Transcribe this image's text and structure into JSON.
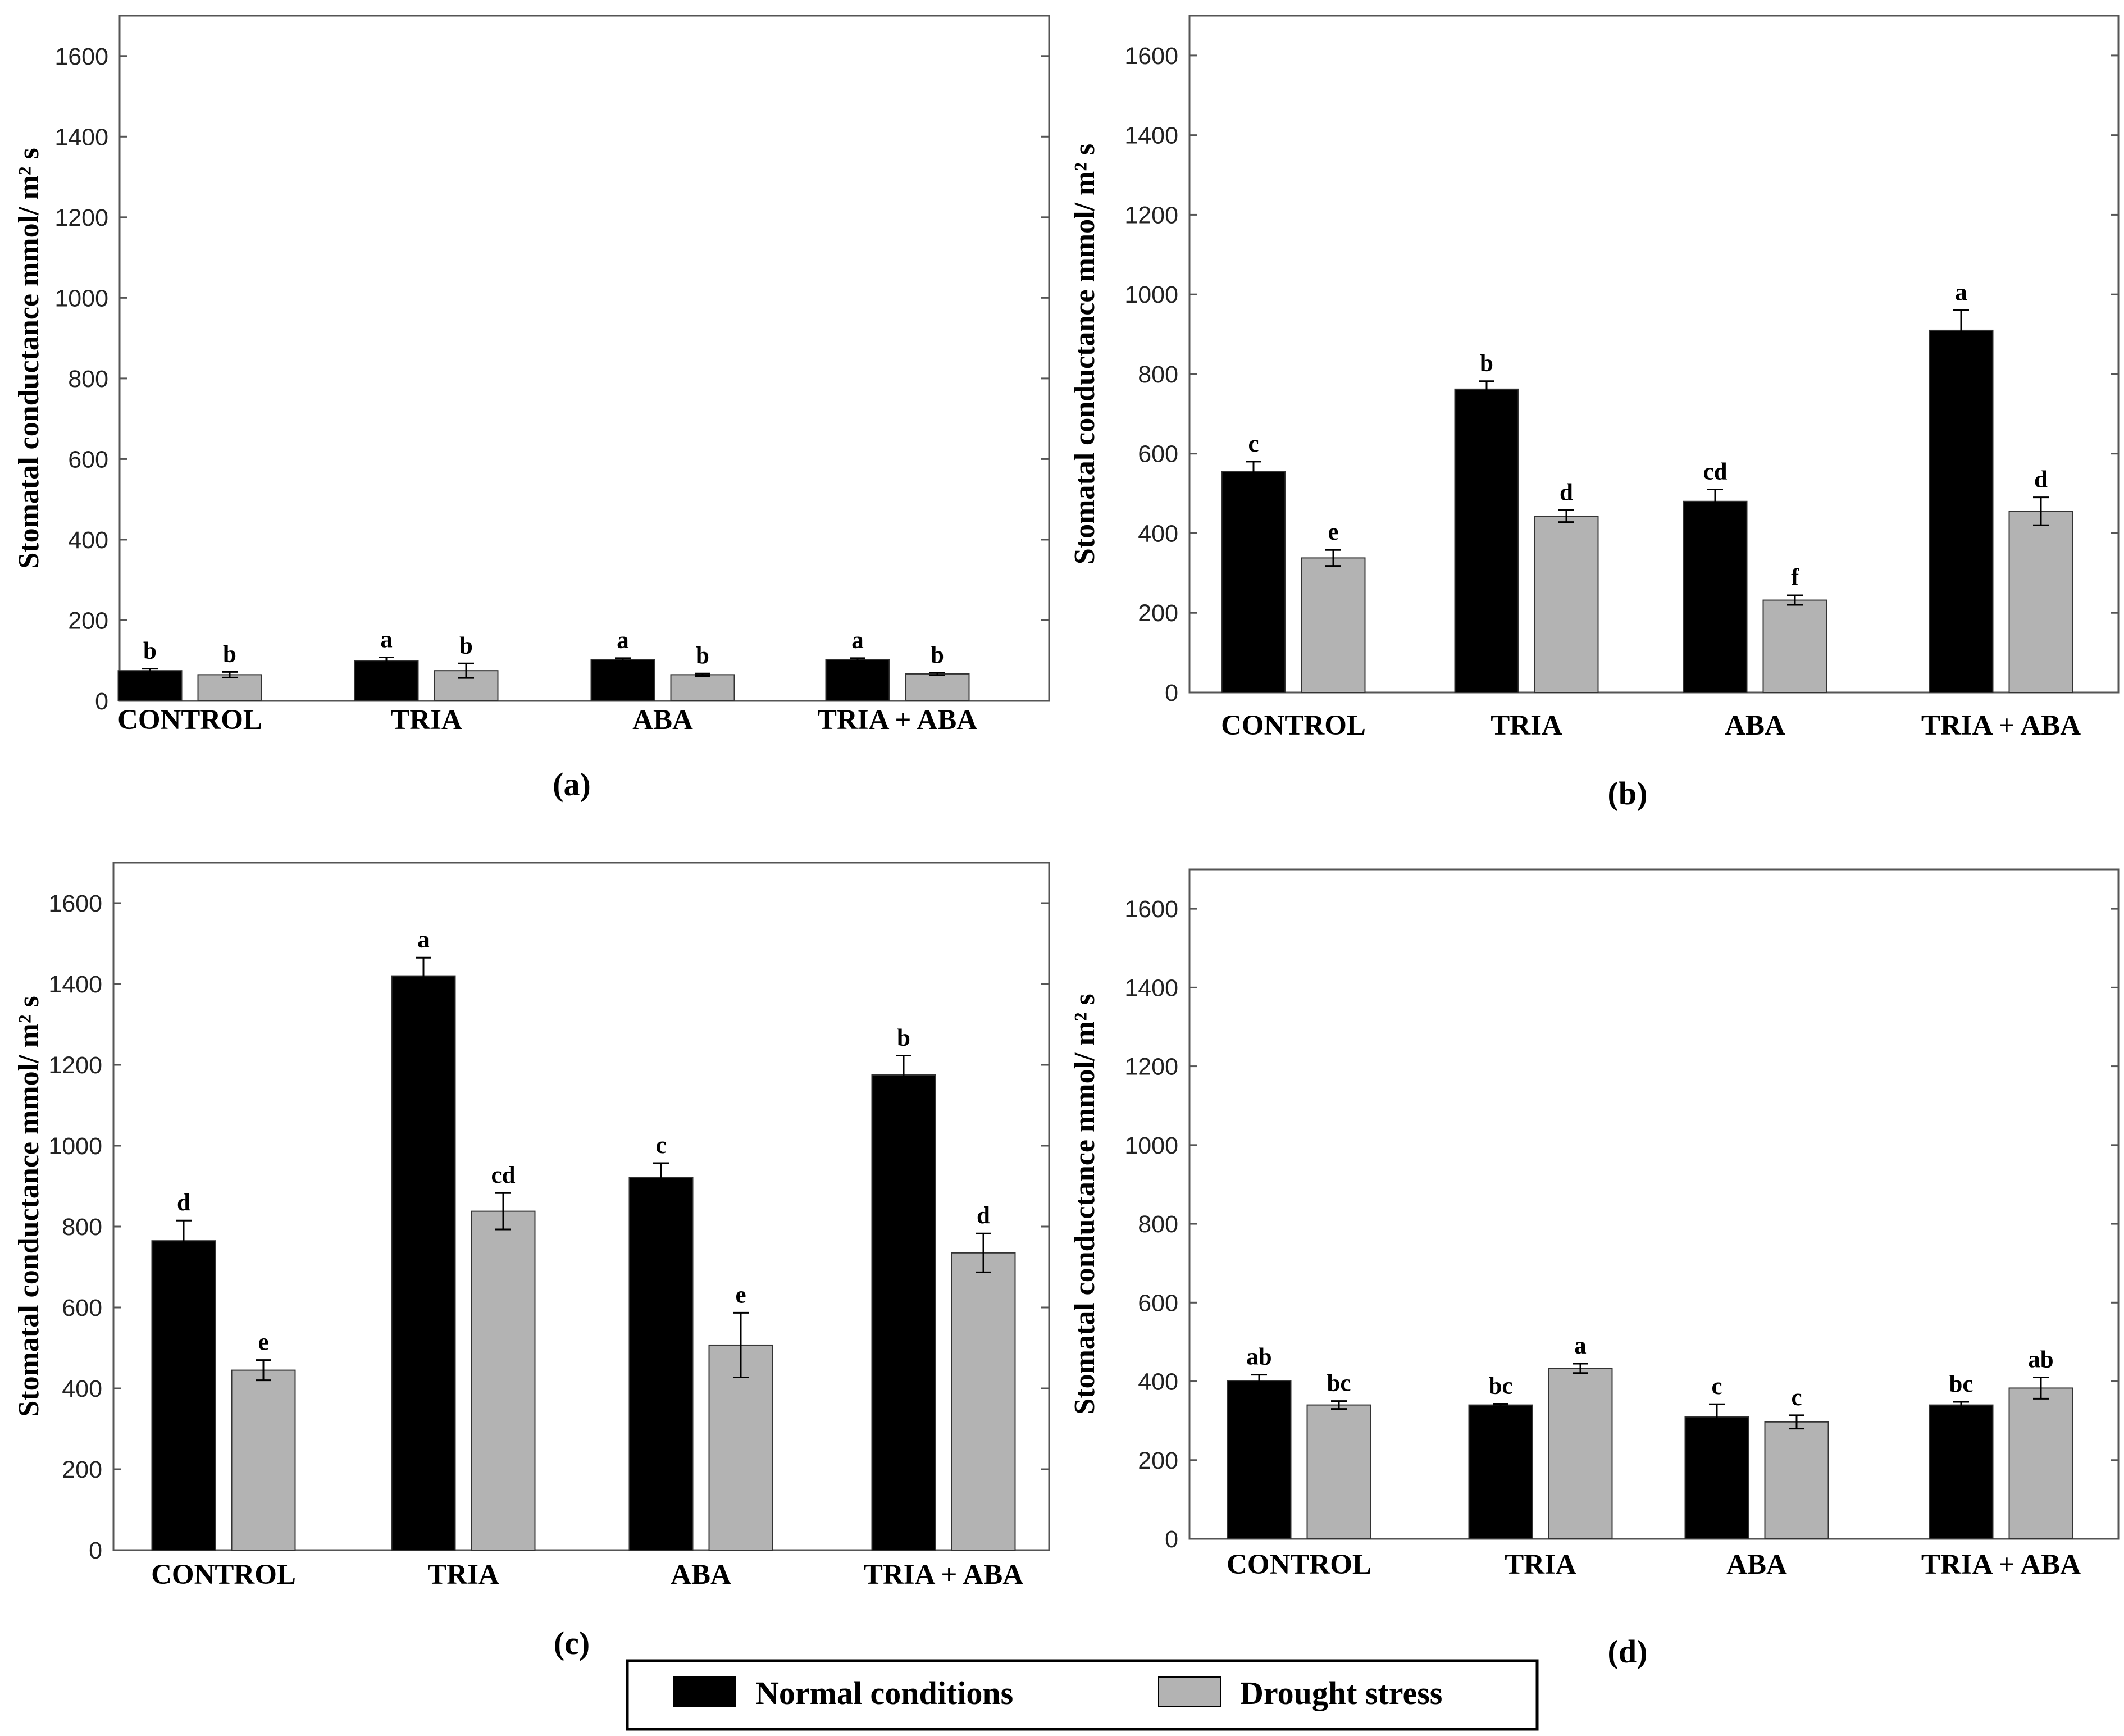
{
  "colors": {
    "normal": "#000000",
    "drought": "#b3b3b3",
    "axis": "#555555"
  },
  "legend": [
    {
      "name": "Normal conditions",
      "color": "#000000"
    },
    {
      "name": "Drought stress",
      "color": "#b3b3b3"
    }
  ],
  "chart_data": [
    {
      "type": "bar",
      "panel_label": "(a)",
      "categories": [
        "CONTROL",
        "TRIA",
        "ABA",
        "TRIA + ABA"
      ],
      "ylabel": "Stomatal conductance mmol/ m² s",
      "ylim": [
        0,
        1700
      ],
      "yticks": [
        0,
        200,
        400,
        600,
        800,
        1000,
        1200,
        1400,
        1600
      ],
      "series": [
        {
          "name": "Normal conditions",
          "values": [
            75,
            100,
            103,
            103
          ],
          "errors": [
            5,
            8,
            3,
            3
          ],
          "letters": [
            "b",
            "a",
            "a",
            "a"
          ]
        },
        {
          "name": "Drought stress",
          "values": [
            65,
            75,
            65,
            67
          ],
          "errors": [
            7,
            18,
            3,
            3
          ],
          "letters": [
            "b",
            "b",
            "b",
            "b"
          ]
        }
      ]
    },
    {
      "type": "bar",
      "panel_label": "(b)",
      "categories": [
        "CONTROL",
        "TRIA",
        "ABA",
        "TRIA + ABA"
      ],
      "ylabel": "Stomatal conductance mmol/ m² s",
      "ylim": [
        0,
        1700
      ],
      "yticks": [
        0,
        200,
        400,
        600,
        800,
        1000,
        1200,
        1400,
        1600
      ],
      "series": [
        {
          "name": "Normal conditions",
          "values": [
            555,
            762,
            480,
            910
          ],
          "errors": [
            25,
            20,
            30,
            50
          ],
          "letters": [
            "c",
            "b",
            "cd",
            "a"
          ]
        },
        {
          "name": "Drought stress",
          "values": [
            338,
            443,
            232,
            455
          ],
          "errors": [
            20,
            15,
            12,
            35
          ],
          "letters": [
            "e",
            "d",
            "f",
            "d"
          ]
        }
      ]
    },
    {
      "type": "bar",
      "panel_label": "(c)",
      "categories": [
        "CONTROL",
        "TRIA",
        "ABA",
        "TRIA + ABA"
      ],
      "ylabel": "Stomatal conductance mmol/ m² s",
      "ylim": [
        0,
        1700
      ],
      "yticks": [
        0,
        200,
        400,
        600,
        800,
        1000,
        1200,
        1400,
        1600
      ],
      "series": [
        {
          "name": "Normal conditions",
          "values": [
            765,
            1420,
            922,
            1175
          ],
          "errors": [
            50,
            45,
            35,
            48
          ],
          "letters": [
            "d",
            "a",
            "c",
            "b"
          ]
        },
        {
          "name": "Drought stress",
          "values": [
            445,
            838,
            507,
            735
          ],
          "errors": [
            25,
            45,
            80,
            48
          ],
          "letters": [
            "e",
            "cd",
            "e",
            "d"
          ]
        }
      ]
    },
    {
      "type": "bar",
      "panel_label": "(d)",
      "categories": [
        "CONTROL",
        "TRIA",
        "ABA",
        "TRIA + ABA"
      ],
      "ylabel": "Stomatal conductance mmol/ m² s",
      "ylim": [
        0,
        1700
      ],
      "yticks": [
        0,
        200,
        400,
        600,
        800,
        1000,
        1200,
        1400,
        1600
      ],
      "series": [
        {
          "name": "Normal conditions",
          "values": [
            402,
            340,
            310,
            340
          ],
          "errors": [
            15,
            3,
            32,
            8
          ],
          "letters": [
            "ab",
            "bc",
            "c",
            "bc"
          ]
        },
        {
          "name": "Drought stress",
          "values": [
            340,
            433,
            297,
            383
          ],
          "errors": [
            10,
            12,
            17,
            27
          ],
          "letters": [
            "bc",
            "a",
            "c",
            "ab"
          ]
        }
      ]
    }
  ]
}
